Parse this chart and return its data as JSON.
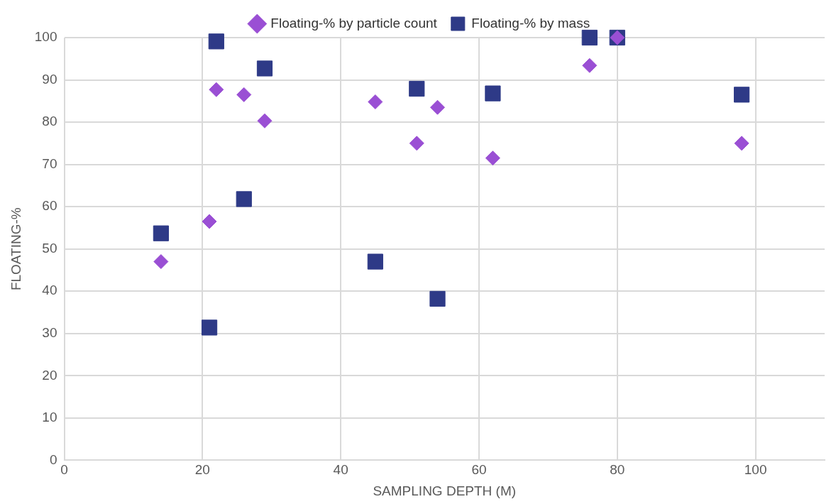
{
  "chart_data": {
    "type": "scatter",
    "xlabel": "SAMPLING DEPTH (M)",
    "ylabel": "FLOATING-%",
    "xlim": [
      0,
      110
    ],
    "xticks": [
      0,
      20,
      40,
      60,
      80,
      100
    ],
    "ylim": [
      0,
      100
    ],
    "yticks": [
      0,
      10,
      20,
      30,
      40,
      50,
      60,
      70,
      80,
      90,
      100
    ],
    "grid": true,
    "legend": "top",
    "series": [
      {
        "name": "Floating-% by particle count",
        "color": "#9a4fd4",
        "marker": "diamond",
        "x": [
          14,
          21,
          22,
          26,
          29,
          45,
          51,
          54,
          62,
          76,
          80,
          98
        ],
        "values": [
          47,
          56.5,
          87.7,
          86.5,
          80.3,
          84.8,
          75,
          83.5,
          71.5,
          93.4,
          100,
          75
        ]
      },
      {
        "name": "Floating-% by mass",
        "color": "#2e3a87",
        "marker": "square",
        "x": [
          14,
          21,
          22,
          26,
          29,
          45,
          51,
          54,
          62,
          76,
          80,
          98
        ],
        "values": [
          53.7,
          31.4,
          99.1,
          61.8,
          92.7,
          47,
          87.9,
          38.2,
          86.8,
          100,
          100,
          86.5
        ]
      }
    ]
  }
}
